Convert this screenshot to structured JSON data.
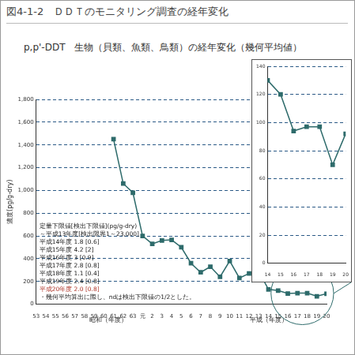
{
  "chart_data": [
    {
      "type": "line",
      "title": "図4-1-2　ＤＤＴのモニタリング調査の経年変化",
      "subtitle": "p,p'-DDT　生物（貝類、魚類、鳥類）の経年変化（幾何平均値）",
      "ylabel": "濃度(pg/g-dry)",
      "xlabel": [
        "昭和（年度）",
        "平成（年度）"
      ],
      "categories": [
        "53",
        "54",
        "55",
        "56",
        "57",
        "58",
        "59",
        "60",
        "61",
        "62",
        "63",
        "元",
        "2",
        "3",
        "4",
        "5",
        "6",
        "7",
        "8",
        "9",
        "10",
        "11",
        "12",
        "13",
        "14",
        "15",
        "16",
        "17",
        "18",
        "19",
        "20"
      ],
      "values": [
        null,
        null,
        null,
        null,
        null,
        null,
        null,
        null,
        1450,
        1060,
        980,
        600,
        530,
        560,
        565,
        500,
        360,
        280,
        330,
        240,
        380,
        230,
        270,
        290,
        130,
        120,
        94,
        97,
        97,
        70,
        92
      ],
      "color": "#2e6b6b",
      "marker": "square",
      "ylim": [
        0,
        1800
      ],
      "yticks": [
        0,
        200,
        400,
        600,
        800,
        {
          "value": 1000,
          "label": "1,000"
        },
        {
          "value": 1200,
          "label": "1,200"
        },
        {
          "value": 1400,
          "label": "1,400"
        },
        {
          "value": 1600,
          "label": "1,600"
        },
        {
          "value": 1800,
          "label": "1,800"
        }
      ],
      "grid": true,
      "annotations": [
        "定量下限値[検出下限値](pg/g-dry)",
        "～平成13年度[検出限界1～23,000]",
        "平成14年度 1.8 [0.6]",
        "平成15年度 4.2 [2]",
        "平成16年度 3 [0.9]",
        "平成17年度 2.8 [0.8]",
        "平成18年度 1.1 [0.4]",
        "平成19年度 2.4 [0.8]",
        "平成20年度 2.0 [0.8]",
        "・幾何平均算出に際し、ndは検出下限値の1/2とした。"
      ]
    },
    {
      "type": "line",
      "categories": [
        "14",
        "15",
        "16",
        "17",
        "18",
        "19",
        "20"
      ],
      "values": [
        130,
        120,
        94,
        97,
        97,
        70,
        92
      ],
      "color": "#2e6b6b",
      "marker": "square",
      "ylim": [
        0,
        140
      ],
      "yticks": [
        0,
        20,
        40,
        60,
        80,
        100,
        120,
        140
      ],
      "grid": true
    }
  ]
}
